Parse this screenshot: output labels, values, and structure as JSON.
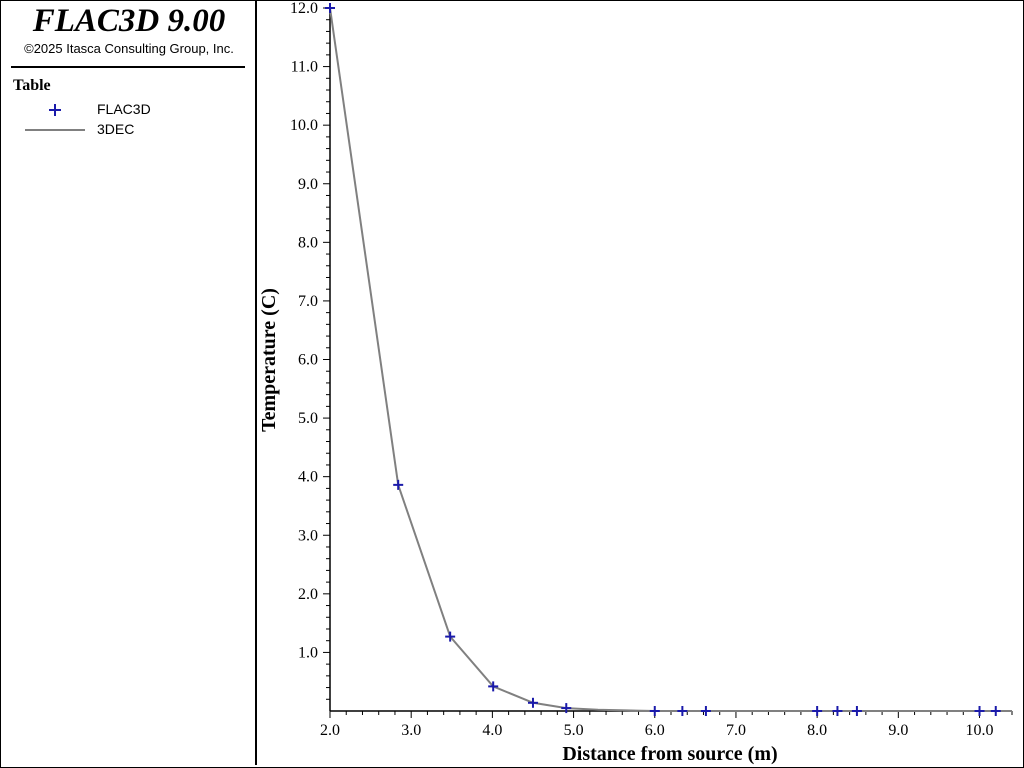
{
  "app": {
    "title": "FLAC3D 9.00",
    "copyright": "©2025 Itasca Consulting Group, Inc."
  },
  "legend": {
    "title": "Table",
    "items": [
      {
        "label": "FLAC3D",
        "marker": "plus",
        "color": "#1a1aaa"
      },
      {
        "label": "3DEC",
        "marker": "line",
        "color": "#808080"
      }
    ]
  },
  "chart_data": {
    "type": "line",
    "xlabel": "Distance from source (m)",
    "ylabel": "Temperature (C)",
    "xlim": [
      2.0,
      10.4
    ],
    "ylim": [
      0.0,
      12.0
    ],
    "xticks": [
      "2.0",
      "3.0",
      "4.0",
      "5.0",
      "6.0",
      "7.0",
      "8.0",
      "9.0",
      "10.0"
    ],
    "yticks": [
      "1.0",
      "2.0",
      "3.0",
      "4.0",
      "5.0",
      "6.0",
      "7.0",
      "8.0",
      "9.0",
      "10.0",
      "11.0",
      "12.0"
    ],
    "series": [
      {
        "name": "FLAC3D",
        "style": "markers",
        "color": "#1a1aaa",
        "x": [
          2.0,
          2.84,
          3.48,
          4.01,
          4.5,
          4.91,
          6.0,
          6.34,
          6.63,
          8.0,
          8.25,
          8.49,
          10.0,
          10.2
        ],
        "y": [
          12.0,
          3.86,
          1.27,
          0.42,
          0.14,
          0.05,
          0.0,
          0.0,
          0.0,
          0.0,
          0.0,
          0.0,
          0.0,
          0.0
        ]
      },
      {
        "name": "3DEC",
        "style": "line",
        "color": "#808080",
        "x": [
          2.0,
          2.84,
          3.48,
          4.01,
          4.5,
          4.91,
          5.3,
          5.65,
          6.0,
          7.0,
          8.0,
          9.0,
          10.4
        ],
        "y": [
          12.0,
          3.86,
          1.27,
          0.42,
          0.14,
          0.05,
          0.02,
          0.01,
          0.0,
          0.0,
          0.0,
          0.0,
          0.0
        ]
      }
    ]
  }
}
